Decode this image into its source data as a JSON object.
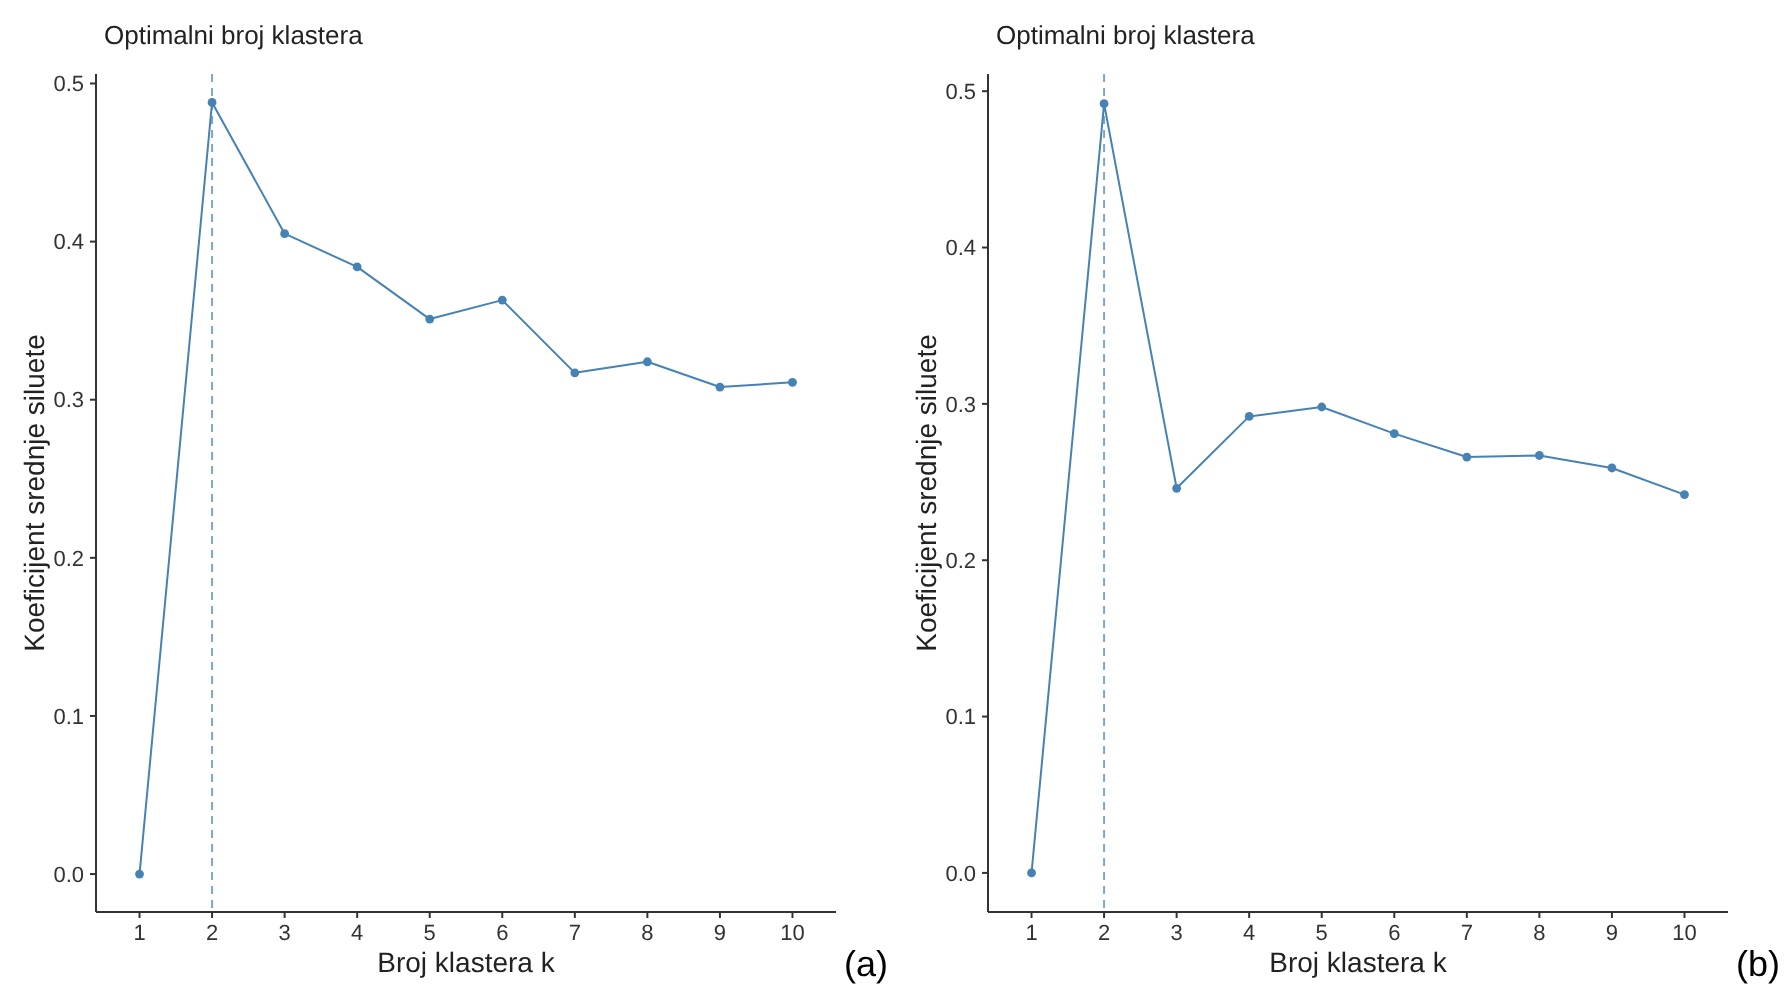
{
  "chart_data": [
    {
      "type": "line",
      "title": "Optimalni broj klastera",
      "xlabel": "Broj klastera k",
      "ylabel": "Koeficijent srednje siluete",
      "annotations": [
        "(a)"
      ],
      "x": [
        1,
        2,
        3,
        4,
        5,
        6,
        7,
        8,
        9,
        10
      ],
      "xlim": [
        0.4,
        10.6
      ],
      "xticks": [
        1,
        2,
        3,
        4,
        5,
        6,
        7,
        8,
        9,
        10
      ],
      "ylim": [
        -0.024,
        0.506
      ],
      "yticks": [
        {
          "value": 0,
          "label": "0.0"
        },
        {
          "value": 0.1,
          "label": "0.1"
        },
        {
          "value": 0.2,
          "label": "0.2"
        },
        {
          "value": 0.3,
          "label": "0.3"
        },
        {
          "value": 0.4,
          "label": "0.4"
        },
        {
          "value": 0.5,
          "label": "0.5"
        }
      ],
      "grid": false,
      "marker": "circle",
      "line_style": "solid",
      "series": [
        {
          "color": "#4682b4",
          "values": [
            0,
            0.488,
            0.405,
            0.384,
            0.351,
            0.363,
            0.317,
            0.324,
            0.308,
            0.311
          ]
        }
      ],
      "ref_lines": [
        {
          "axis": "x",
          "value": 2,
          "color": "#4682b4",
          "line_style": "dashed"
        }
      ]
    },
    {
      "type": "line",
      "title": "Optimalni broj klastera",
      "xlabel": "Broj klastera k",
      "ylabel": "Koeficijent srednje siluete",
      "annotations": [
        "(b)"
      ],
      "x": [
        1,
        2,
        3,
        4,
        5,
        6,
        7,
        8,
        9,
        10
      ],
      "xlim": [
        0.4,
        10.6
      ],
      "xticks": [
        1,
        2,
        3,
        4,
        5,
        6,
        7,
        8,
        9,
        10
      ],
      "ylim": [
        -0.025,
        0.511
      ],
      "yticks": [
        {
          "value": 0,
          "label": "0.0"
        },
        {
          "value": 0.1,
          "label": "0.1"
        },
        {
          "value": 0.2,
          "label": "0.2"
        },
        {
          "value": 0.3,
          "label": "0.3"
        },
        {
          "value": 0.4,
          "label": "0.4"
        },
        {
          "value": 0.5,
          "label": "0.5"
        }
      ],
      "grid": false,
      "marker": "circle",
      "line_style": "solid",
      "series": [
        {
          "color": "#4682b4",
          "values": [
            0,
            0.492,
            0.246,
            0.292,
            0.298,
            0.281,
            0.266,
            0.267,
            0.259,
            0.242
          ]
        }
      ],
      "ref_lines": [
        {
          "axis": "x",
          "value": 2,
          "color": "#4682b4",
          "line_style": "dashed"
        }
      ]
    }
  ]
}
